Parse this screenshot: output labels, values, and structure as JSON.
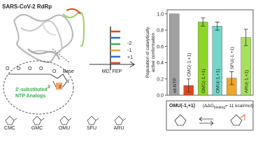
{
  "protein": {
    "title": "SARS-CoV-2 RdRp",
    "analog_label": "2'-substituted",
    "analog_label2": "NTP Analogs",
    "atoms": [
      "Base",
      "1'",
      "2'",
      "3'",
      "O",
      "O",
      "O",
      "O",
      "O"
    ],
    "molecules": [
      "CMC",
      "GMC",
      "OMU",
      "SFU",
      "ARU"
    ]
  },
  "rna": {
    "labels": [
      "-2",
      "-1",
      "+1"
    ],
    "method": "MD, FEP"
  },
  "chart_data": {
    "type": "bar",
    "y_label": [
      "Population of catalytically",
      "active conformation"
    ],
    "categories": [
      "wt-NTP",
      "CMC(-1,+1)",
      "GMC(-1,+1)",
      "OMU(-1,+1)",
      "SFU(-1,+1)",
      "ARU(-1,+1)"
    ],
    "values": [
      1.0,
      0.12,
      0.9,
      0.85,
      0.21,
      0.71
    ],
    "errors": [
      0,
      0.08,
      0.05,
      0.05,
      0.08,
      0.1
    ],
    "colors": [
      "#a0a0a0",
      "#e8431c",
      "#8ed627",
      "#72d6cb",
      "#f0a52a",
      "#a6e05c"
    ],
    "ylim": [
      0,
      1.05
    ],
    "yticks": [
      {
        "value": 0,
        "label": "0.0"
      },
      0.2,
      0.4,
      0.6,
      0.8,
      {
        "value": 1,
        "label": "1.0"
      }
    ],
    "grid": false
  },
  "inset": {
    "title": "OMU(-1,+1)",
    "energy_open": "(ΔΔG",
    "energy_sub": "binding",
    "energy_close": "= 11 kcal/mol)"
  }
}
